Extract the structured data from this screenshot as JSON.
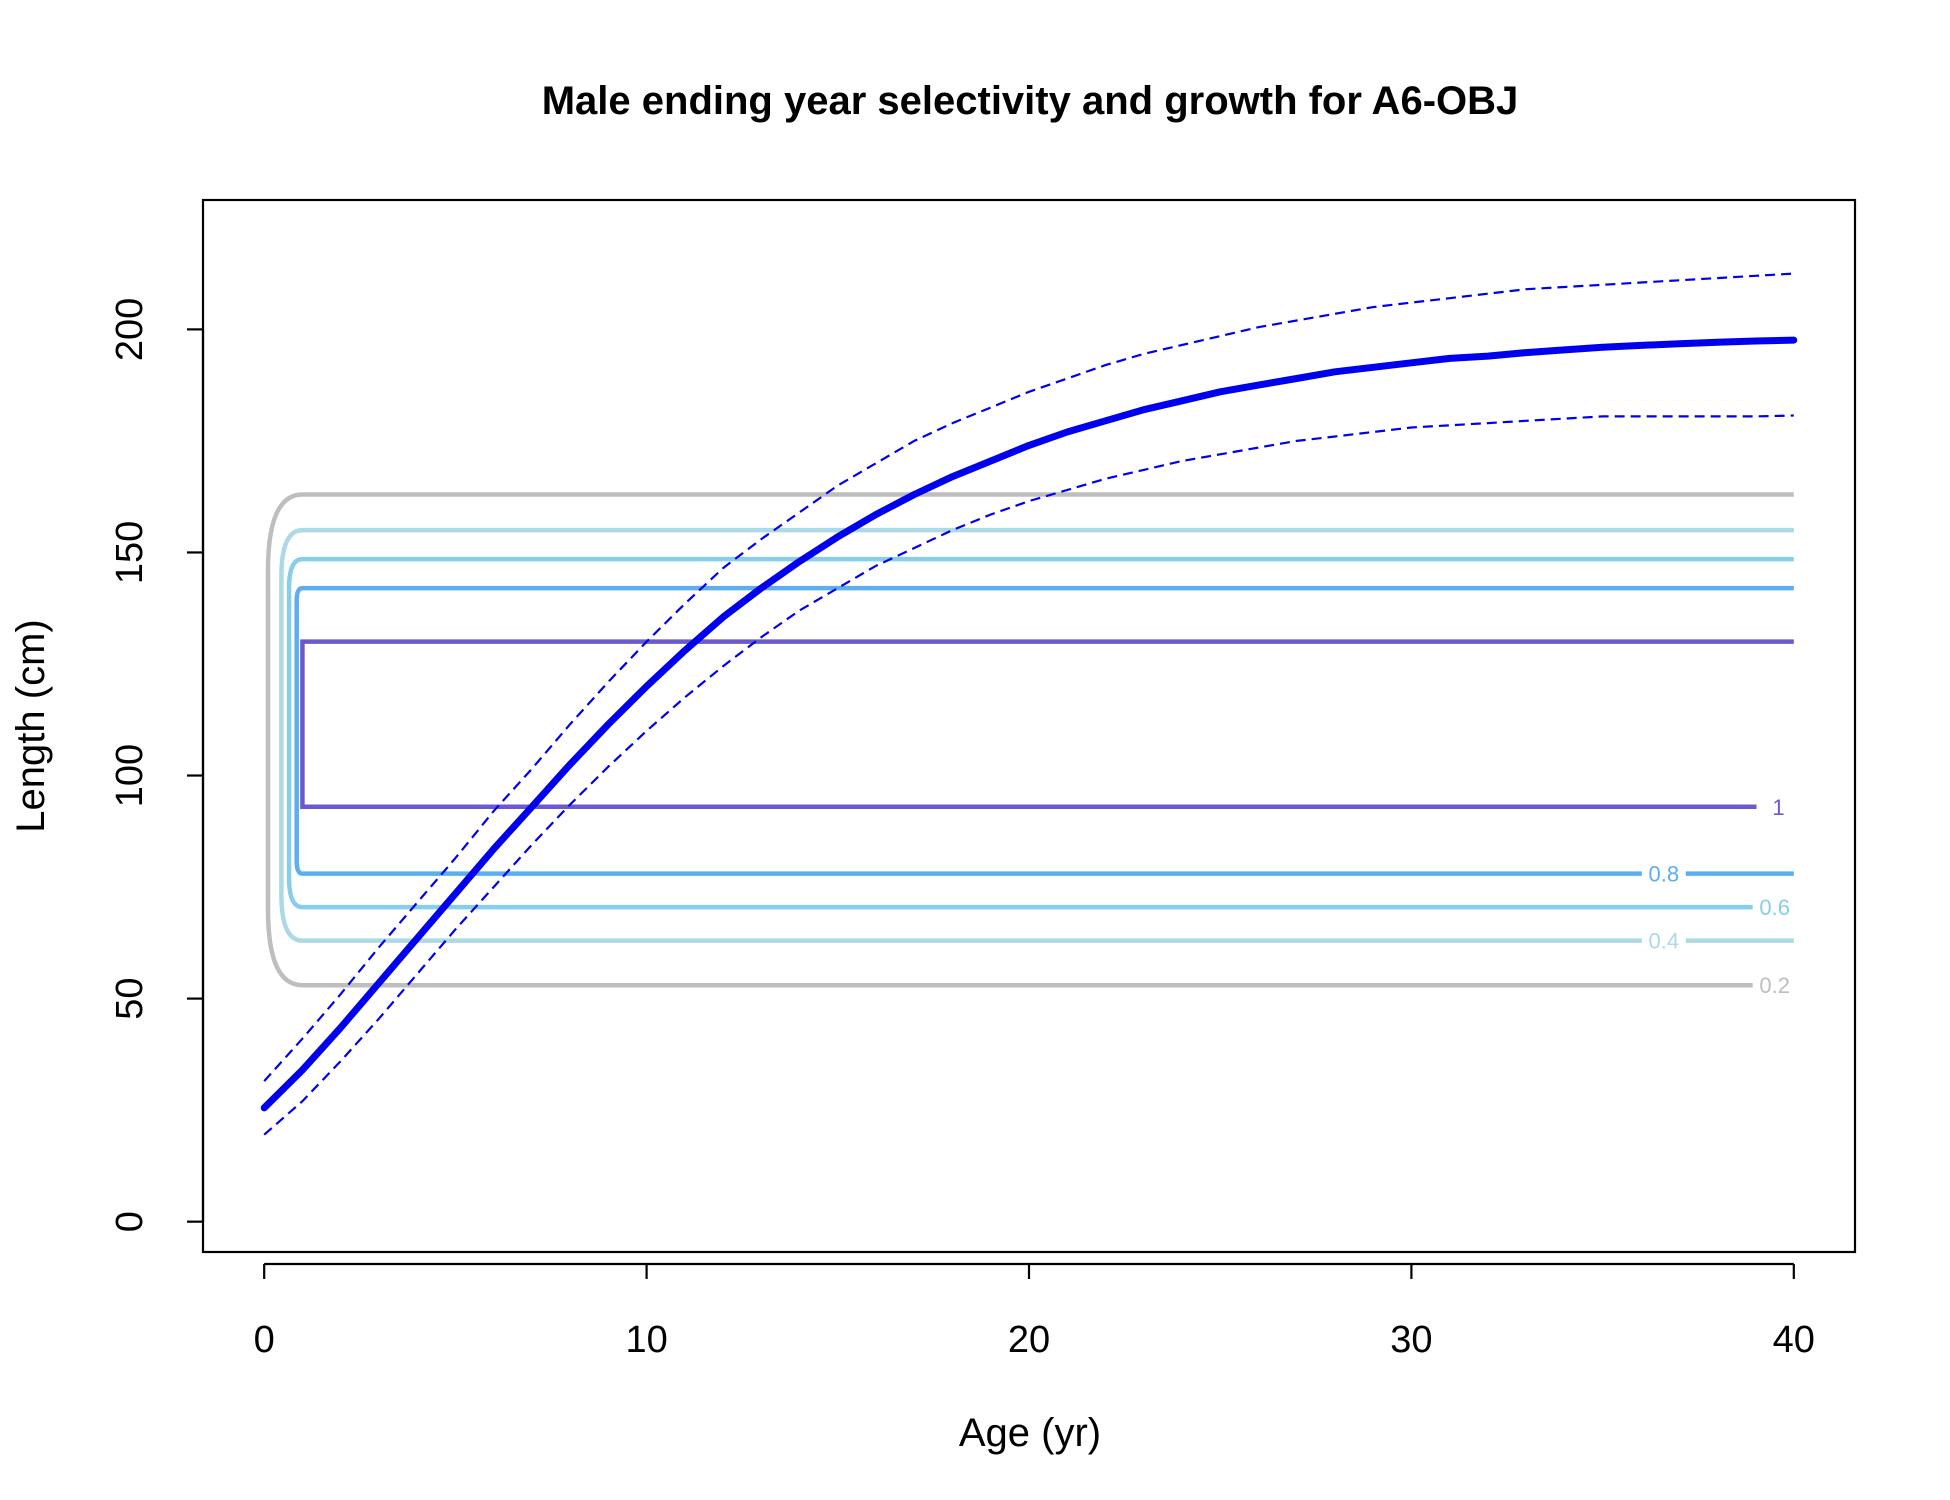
{
  "chart_data": {
    "type": "line",
    "title": "Male ending year selectivity and growth for A6-OBJ",
    "xlabel": "Age (yr)",
    "ylabel": "Length (cm)",
    "xlim": [
      -1.6,
      41.6
    ],
    "ylim": [
      -6.8,
      229
    ],
    "xticks": [
      0,
      10,
      20,
      30,
      40
    ],
    "yticks": [
      0,
      50,
      100,
      150,
      200
    ],
    "grid": false,
    "colors": {
      "growth": "#0000ee",
      "c02": "#bebebe",
      "c04": "#add8e6",
      "c06": "#87ceeb",
      "c08": "#5caef0",
      "c10": "#6a5acd"
    },
    "growth": {
      "x": [
        0,
        1,
        2,
        3,
        4,
        5,
        6,
        7,
        8,
        9,
        10,
        11,
        12,
        13,
        14,
        15,
        16,
        17,
        18,
        19,
        20,
        21,
        22,
        23,
        24,
        25,
        26,
        27,
        28,
        29,
        30,
        31,
        32,
        33,
        34,
        35,
        36,
        37,
        38,
        39,
        40
      ],
      "mean": [
        25.5,
        34,
        43.5,
        53.5,
        63.5,
        73.5,
        83.5,
        93,
        102.5,
        111.5,
        120,
        128,
        135.5,
        142,
        148,
        153.5,
        158.5,
        163,
        167,
        170.5,
        174,
        177,
        179.5,
        182,
        184,
        186,
        187.5,
        189,
        190.5,
        191.5,
        192.5,
        193.5,
        194,
        194.8,
        195.4,
        196,
        196.4,
        196.8,
        197.1,
        197.4,
        197.6
      ],
      "lower": [
        19.5,
        27,
        36,
        45.5,
        55.5,
        65.5,
        75,
        84.5,
        93.5,
        102,
        110,
        117.5,
        124.5,
        131,
        137,
        142,
        147,
        151,
        155,
        158.5,
        161.5,
        164,
        166.5,
        168.5,
        170.5,
        172,
        173.5,
        175,
        176,
        177,
        178,
        178.5,
        179,
        179.5,
        180,
        180.5,
        180.5,
        180.5,
        180.5,
        180.5,
        180.7
      ],
      "upper": [
        31.5,
        41,
        51,
        61.5,
        71.5,
        81.5,
        92,
        101.5,
        111.5,
        121,
        130,
        138.5,
        146.5,
        153,
        159,
        165,
        170,
        175,
        179,
        182.5,
        186,
        189,
        192,
        194.5,
        196.5,
        198.5,
        200.5,
        202,
        203.5,
        205,
        206,
        207,
        208,
        209,
        209.5,
        210,
        210.5,
        211,
        211.5,
        212,
        212.5
      ]
    },
    "contours": [
      {
        "level": "0.2",
        "low": 53,
        "high": 163,
        "label_x": 39.5
      },
      {
        "level": "0.4",
        "low": 63,
        "high": 155,
        "label_x": 36.6
      },
      {
        "level": "0.6",
        "low": 70.5,
        "high": 148.5,
        "label_x": 39.5
      },
      {
        "level": "0.8",
        "low": 78,
        "high": 142,
        "label_x": 36.6
      },
      {
        "level": "1",
        "low": 93,
        "high": 130,
        "label_x": 39.6
      }
    ]
  }
}
